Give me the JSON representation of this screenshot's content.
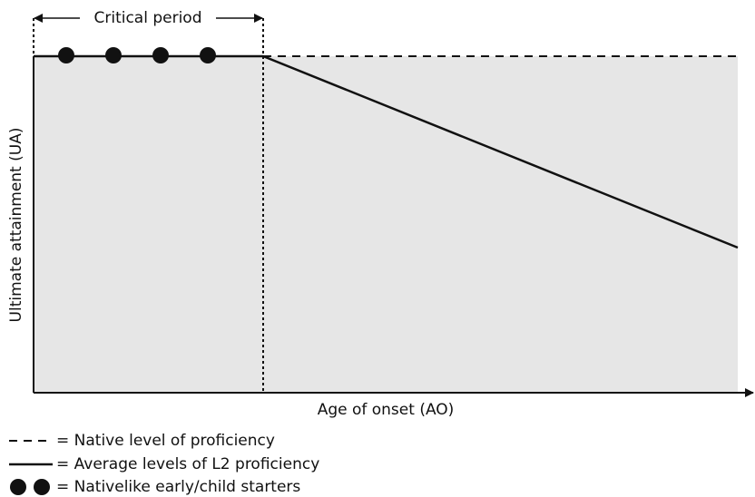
{
  "diagram": {
    "critical_period": "Critical period",
    "y_axis_label": "Ultimate attainment (UA)",
    "x_axis_label": "Age of onset (AO)",
    "legend": [
      {
        "label": "= Native level of proficiency"
      },
      {
        "label": "= Average levels of L2 proficiency"
      },
      {
        "label": "= Nativelike early/child starters"
      }
    ]
  }
}
